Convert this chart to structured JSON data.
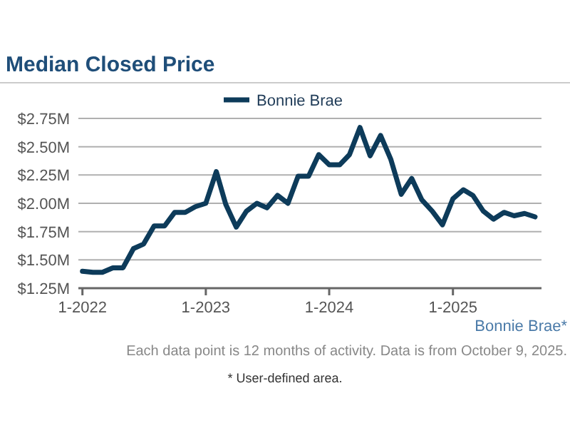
{
  "chart_data": {
    "type": "line",
    "title": "Median Closed Price",
    "x": [
      "2022-01",
      "2022-02",
      "2022-03",
      "2022-04",
      "2022-05",
      "2022-06",
      "2022-07",
      "2022-08",
      "2022-09",
      "2022-10",
      "2022-11",
      "2022-12",
      "2023-01",
      "2023-02",
      "2023-03",
      "2023-04",
      "2023-05",
      "2023-06",
      "2023-07",
      "2023-08",
      "2023-09",
      "2023-10",
      "2023-11",
      "2023-12",
      "2024-01",
      "2024-02",
      "2024-03",
      "2024-04",
      "2024-05",
      "2024-06",
      "2024-07",
      "2024-08",
      "2024-09",
      "2024-10",
      "2024-11",
      "2024-12",
      "2025-01",
      "2025-02",
      "2025-03",
      "2025-04",
      "2025-05",
      "2025-06",
      "2025-07",
      "2025-08",
      "2025-09"
    ],
    "series": [
      {
        "name": "Bonnie Brae",
        "color": "#0d3b5a",
        "values": [
          1.4,
          1.39,
          1.39,
          1.43,
          1.43,
          1.6,
          1.64,
          1.8,
          1.8,
          1.92,
          1.92,
          1.97,
          2.0,
          2.28,
          1.99,
          1.79,
          1.93,
          2.0,
          1.96,
          2.07,
          2.0,
          2.24,
          2.24,
          2.43,
          2.34,
          2.34,
          2.43,
          2.67,
          2.42,
          2.6,
          2.39,
          2.08,
          2.22,
          2.03,
          1.93,
          1.81,
          2.04,
          2.12,
          2.07,
          1.93,
          1.86,
          1.92,
          1.89,
          1.91,
          1.88
        ]
      }
    ],
    "xlim": [
      "2021-12-20",
      "2025-09-20"
    ],
    "xticks": [
      {
        "value": "2022-01",
        "label": "1-2022"
      },
      {
        "value": "2023-01",
        "label": "1-2023"
      },
      {
        "value": "2024-01",
        "label": "1-2024"
      },
      {
        "value": "2025-01",
        "label": "1-2025"
      }
    ],
    "ylim": [
      1.25,
      2.75
    ],
    "yticks": [
      {
        "value": 1.25,
        "label": "$1.25M"
      },
      {
        "value": 1.5,
        "label": "$1.50M"
      },
      {
        "value": 1.75,
        "label": "$1.75M"
      },
      {
        "value": 2,
        "label": "$2.00M"
      },
      {
        "value": 2.25,
        "label": "$2.25M"
      },
      {
        "value": 2.5,
        "label": "$2.50M"
      },
      {
        "value": 2.75,
        "label": "$2.75M"
      }
    ],
    "grid": "y",
    "legend": "top",
    "line_style": "solid",
    "marker": "none",
    "annotations": [
      "Bonnie Brae*",
      "Each data point is 12 months of activity. Data is from October 9, 2025.",
      "* User-defined area."
    ]
  }
}
